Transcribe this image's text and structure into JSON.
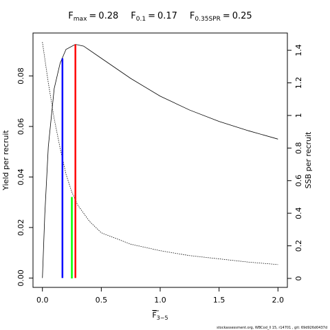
{
  "chart_data": {
    "type": "line",
    "title": [
      {
        "symbol": "F",
        "subscript": "max",
        "relation": "=",
        "value": 0.28
      },
      {
        "symbol": "F",
        "subscript": "0.1",
        "relation": "=",
        "value": 0.17
      },
      {
        "symbol": "F",
        "subscript": "0.35SPR",
        "relation": "=",
        "value": 0.25
      }
    ],
    "xlabel": {
      "symbol": "F",
      "subscript": "3−5"
    },
    "ylabel": "Yield per recruit",
    "y2label": "SSB per recruit",
    "footer": "stockassessment.org, WBCod_ll 15, r14701 , git: 69d926d0437d",
    "xlim": [
      -0.08,
      2.08
    ],
    "ylim": [
      -0.0037,
      0.097
    ],
    "y2lim": [
      -0.055,
      1.506
    ],
    "xticks": [
      {
        "value": 0,
        "label": "0.0"
      },
      0.5,
      {
        "value": 1,
        "label": "1.0"
      },
      1.5,
      {
        "value": 2,
        "label": "2.0"
      }
    ],
    "yticks": [
      {
        "value": 0,
        "label": "0.00"
      },
      0.02,
      0.04,
      0.06,
      0.08
    ],
    "y2ticks": [
      0,
      0.2,
      0.4,
      0.6,
      0.8,
      1,
      1.2,
      1.4
    ],
    "series": [
      {
        "color": "#000000",
        "dash": false,
        "axis": "y",
        "x": [
          0,
          0.02,
          0.05,
          0.1,
          0.15,
          0.2,
          0.28,
          0.35,
          0.5,
          0.75,
          1.0,
          1.25,
          1.5,
          1.75,
          2.0
        ],
        "values": [
          0,
          0.025,
          0.052,
          0.075,
          0.085,
          0.0905,
          0.0925,
          0.0918,
          0.087,
          0.079,
          0.072,
          0.0665,
          0.062,
          0.0583,
          0.055
        ]
      },
      {
        "color": "#000000",
        "dash": true,
        "axis": "y2",
        "x": [
          0,
          0.05,
          0.1,
          0.15,
          0.2,
          0.25,
          0.3,
          0.4,
          0.5,
          0.75,
          1.0,
          1.25,
          1.5,
          1.75,
          2.0
        ],
        "values": [
          1.45,
          1.2,
          0.98,
          0.8,
          0.64,
          0.53,
          0.45,
          0.35,
          0.28,
          0.21,
          0.17,
          0.14,
          0.12,
          0.1,
          0.085
        ]
      }
    ],
    "reference_lines": [
      {
        "x": 0.17,
        "value": 0.087,
        "axis": "y",
        "color": "#0000ff"
      },
      {
        "x": 0.28,
        "value": 0.0925,
        "axis": "y",
        "color": "#ff0000"
      },
      {
        "x": 0.25,
        "value": 0.5,
        "axis": "y2",
        "color": "#00ff00"
      }
    ]
  }
}
